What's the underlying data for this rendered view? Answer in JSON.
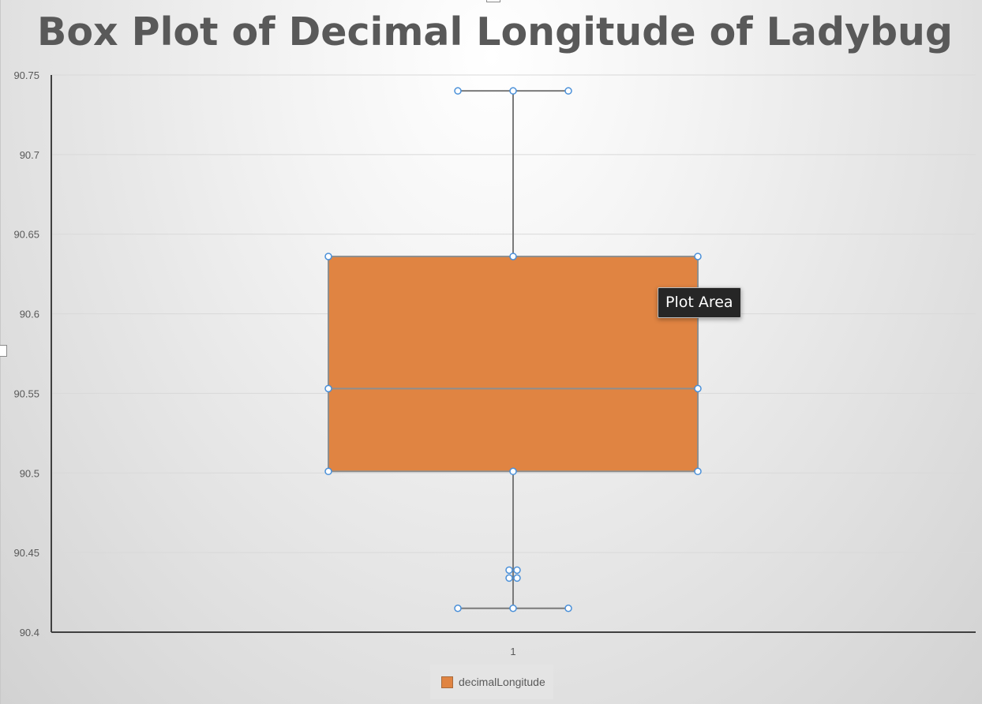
{
  "chart_data": {
    "type": "box",
    "title": "Box Plot of Decimal Longitude of Ladybug",
    "xlabel": "",
    "ylabel": "",
    "categories": [
      "1"
    ],
    "ylim": [
      90.4,
      90.75
    ],
    "yticks": [
      "90.75",
      "90.7",
      "90.65",
      "90.6",
      "90.55",
      "90.5",
      "90.45",
      "90.4"
    ],
    "series": [
      {
        "name": "decimalLongitude",
        "whisker_high": 90.74,
        "q3": 90.636,
        "median": 90.553,
        "q1": 90.501,
        "whisker_low": 90.415,
        "outliers": [
          90.439,
          90.434
        ]
      }
    ],
    "grid": true,
    "legend": "bottom",
    "colors": {
      "box": "#E08442",
      "box_border": "#8E8E8E",
      "whisker": "#7A7A7A",
      "axis": "#404040",
      "gridline": "#D9D9D9",
      "handle": "#4A90D9"
    }
  },
  "tooltip": {
    "label": "Plot Area"
  }
}
